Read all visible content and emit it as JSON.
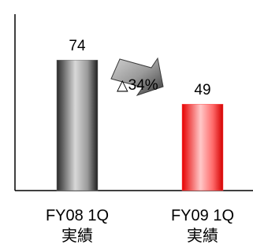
{
  "chart_data": {
    "type": "bar",
    "categories": [
      {
        "line1": "FY08 1Q",
        "line2": "実績"
      },
      {
        "line1": "FY09 1Q",
        "line2": "実績"
      }
    ],
    "values": [
      74,
      49
    ],
    "value_labels": [
      "74",
      "49"
    ],
    "ylim": [
      0,
      100
    ],
    "bar_colors": [
      "#7a7a7a",
      "#ff5a5a"
    ],
    "change_annotation": "△34%",
    "arrow_color": "#8c8c8c"
  }
}
